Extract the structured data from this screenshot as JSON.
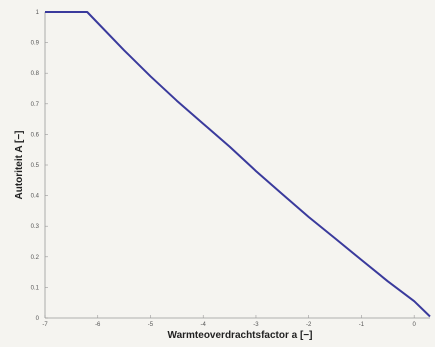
{
  "chart_data": {
    "type": "line",
    "title": "",
    "xlabel": "Warmteoverdrachtsfactor  a  [−]",
    "ylabel": "Autoriteit A [−]",
    "xlim": [
      -7,
      0.3
    ],
    "ylim": [
      0,
      1
    ],
    "xticks": [
      "-7",
      "-6",
      "-5",
      "-4",
      "-3",
      "-2",
      "-1",
      "0"
    ],
    "yticks": [
      "0",
      "0.1",
      "0.2",
      "0.3",
      "0.4",
      "0.5",
      "0.6",
      "0.7",
      "0.8",
      "0.9",
      "1"
    ],
    "grid": false,
    "line_color": "#3a3a9c",
    "series": [
      {
        "x": [
          -7,
          -6.2,
          -5.5,
          -5,
          -4.5,
          -4,
          -3.5,
          -3,
          -2.5,
          -2,
          -1.5,
          -1,
          -0.5,
          0,
          0.3
        ],
        "y": [
          1,
          1,
          0.875,
          0.79,
          0.71,
          0.635,
          0.56,
          0.48,
          0.405,
          0.33,
          0.26,
          0.19,
          0.12,
          0.055,
          0.005
        ]
      }
    ]
  }
}
